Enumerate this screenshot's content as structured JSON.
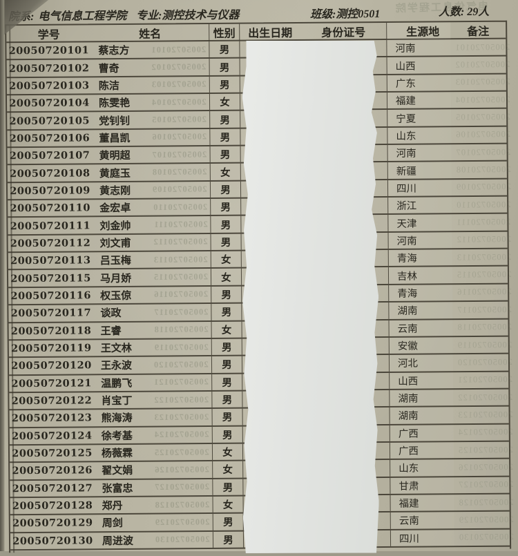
{
  "page_header": {
    "department_label": "院系:",
    "department": "电气信息工程学院",
    "major": "专业:测控技术与仪器",
    "class_name": "班级:测控0501",
    "student_count": "人数: 29人"
  },
  "table": {
    "columns": [
      "学号",
      "姓名",
      "性别",
      "出生日期",
      "身份证号",
      "生源地",
      "备注"
    ],
    "rows": [
      {
        "id": "20050720101",
        "name": "蔡志方",
        "gender": "男",
        "origin": "河南"
      },
      {
        "id": "20050720102",
        "name": "曹奇",
        "gender": "男",
        "origin": "山西"
      },
      {
        "id": "20050720103",
        "name": "陈洁",
        "gender": "男",
        "origin": "广东"
      },
      {
        "id": "20050720104",
        "name": "陈雯艳",
        "gender": "女",
        "origin": "福建"
      },
      {
        "id": "20050720105",
        "name": "党钊钊",
        "gender": "男",
        "origin": "宁夏"
      },
      {
        "id": "20050720106",
        "name": "董昌凯",
        "gender": "男",
        "origin": "山东"
      },
      {
        "id": "20050720107",
        "name": "黄明超",
        "gender": "男",
        "origin": "河南"
      },
      {
        "id": "20050720108",
        "name": "黄庭玉",
        "gender": "女",
        "origin": "新疆"
      },
      {
        "id": "20050720109",
        "name": "黄志刚",
        "gender": "男",
        "origin": "四川"
      },
      {
        "id": "20050720110",
        "name": "金宏卓",
        "gender": "男",
        "origin": "浙江"
      },
      {
        "id": "20050720111",
        "name": "刘金帅",
        "gender": "男",
        "origin": "天津"
      },
      {
        "id": "20050720112",
        "name": "刘文甫",
        "gender": "男",
        "origin": "河南"
      },
      {
        "id": "20050720113",
        "name": "吕玉梅",
        "gender": "女",
        "origin": "青海"
      },
      {
        "id": "20050720115",
        "name": "马月娇",
        "gender": "女",
        "origin": "吉林"
      },
      {
        "id": "20050720116",
        "name": "权玉倞",
        "gender": "男",
        "origin": "青海"
      },
      {
        "id": "20050720117",
        "name": "谈政",
        "gender": "男",
        "origin": "湖南"
      },
      {
        "id": "20050720118",
        "name": "王睿",
        "gender": "女",
        "origin": "云南"
      },
      {
        "id": "20050720119",
        "name": "王文林",
        "gender": "男",
        "origin": "安徽"
      },
      {
        "id": "20050720120",
        "name": "王永波",
        "gender": "男",
        "origin": "河北"
      },
      {
        "id": "20050720121",
        "name": "温鹏飞",
        "gender": "男",
        "origin": "山西"
      },
      {
        "id": "20050720122",
        "name": "肖宝丁",
        "gender": "男",
        "origin": "湖南"
      },
      {
        "id": "20050720123",
        "name": "熊海涛",
        "gender": "男",
        "origin": "湖南"
      },
      {
        "id": "20050720124",
        "name": "徐考基",
        "gender": "男",
        "origin": "广西"
      },
      {
        "id": "20050720125",
        "name": "杨薇霖",
        "gender": "女",
        "origin": "广西"
      },
      {
        "id": "20050720126",
        "name": "翟文娟",
        "gender": "女",
        "origin": "山东"
      },
      {
        "id": "20050720127",
        "name": "张富忠",
        "gender": "男",
        "origin": "甘肃"
      },
      {
        "id": "20050720128",
        "name": "郑丹",
        "gender": "女",
        "origin": "福建"
      },
      {
        "id": "20050720129",
        "name": "周剑",
        "gender": "男",
        "origin": "云南"
      },
      {
        "id": "20050720130",
        "name": "周进波",
        "gender": "男",
        "origin": "四川"
      }
    ]
  },
  "colors": {
    "paper": "#b7b3a1",
    "table_line": "#383429",
    "ink": "#29271f",
    "cover_paper": "#e4e6e3"
  }
}
